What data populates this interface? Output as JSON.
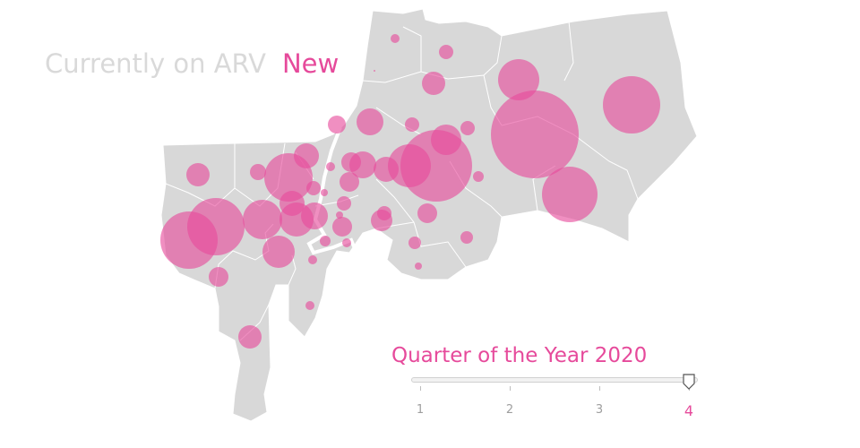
{
  "header": {
    "prefix": "Currently on ARV",
    "status": "New"
  },
  "slider": {
    "title": "Quarter of the Year 2020",
    "ticks": [
      "1",
      "2",
      "3",
      "4"
    ],
    "selected": 4
  },
  "colors": {
    "district_fill": "#d8d8d8",
    "district_border": "#ffffff",
    "bubble": "#e64a9b",
    "title_muted": "#d9d9d9",
    "accent": "#e64a9b"
  }
}
